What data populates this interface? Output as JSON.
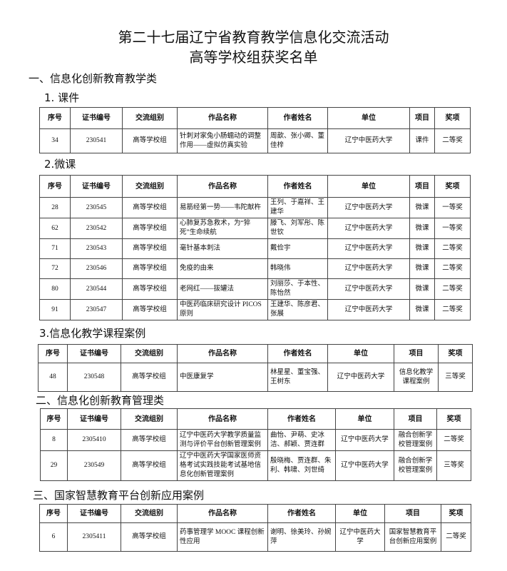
{
  "title": {
    "line1": "第二十七届辽宁省教育教学信息化交流活动",
    "line2": "高等学校组获奖名单"
  },
  "headers": [
    "序号",
    "证书编号",
    "交流组别",
    "作品名称",
    "作者姓名",
    "单位",
    "项目",
    "奖项"
  ],
  "sections": [
    {
      "heading": "一、信息化创新教育教学类",
      "subsections": [
        {
          "heading": "1.   课件",
          "rows": [
            [
              "34",
              "230541",
              "高等学校组",
              "针刺对家兔小肠蠕动的调整作用——虚拟仿真实验",
              "周歆、张小卿、董佳梓",
              "辽宁中医药大学",
              "课件",
              "二等奖"
            ]
          ]
        },
        {
          "heading": "2.微课",
          "rows": [
            [
              "28",
              "230545",
              "高等学校组",
              "易筋经第一势——韦陀献杵",
              "王列、于嘉祥、王建华",
              "辽宁中医药大学",
              "微课",
              "一等奖"
            ],
            [
              "62",
              "230542",
              "高等学校组",
              "心肺复苏急救术，为“猝死”生命续航",
              "滕飞、刘军彤、陈世钦",
              "辽宁中医药大学",
              "微课",
              "一等奖"
            ],
            [
              "71",
              "230543",
              "高等学校组",
              "毫针基本刺法",
              "戴俭宇",
              "辽宁中医药大学",
              "微课",
              "二等奖"
            ],
            [
              "72",
              "230546",
              "高等学校组",
              "免疫的由来",
              "韩晓伟",
              "辽宁中医药大学",
              "微课",
              "二等奖"
            ],
            [
              "80",
              "230544",
              "高等学校组",
              "老网红——拔罐法",
              "刘丽莎、于本性、陈怡然",
              "辽宁中医药大学",
              "微课",
              "二等奖"
            ],
            [
              "91",
              "230547",
              "高等学校组",
              "中医药临床研究设计 PICOS 原则",
              "王建华、陈彦君、张展",
              "辽宁中医药大学",
              "微课",
              "二等奖"
            ]
          ]
        },
        {
          "heading": "3.信息化教学课程案例",
          "rows": [
            [
              "48",
              "230548",
              "高等学校组",
              "中医康复学",
              "林星星、董宝强、王树东",
              "辽宁中医药大学",
              "信息化教学课程案例",
              "三等奖"
            ]
          ]
        }
      ]
    },
    {
      "heading": "二、信息化创新教育管理类",
      "rows": [
        [
          "8",
          "2305410",
          "高等学校组",
          "辽宁中医药大学教学质量监测与评价平台创新管理案例",
          "曲怡、尹萌、史冰洁、郝颖、贾连群",
          "辽宁中医药大学",
          "融合创新学校管理案例",
          "二等奖"
        ],
        [
          "29",
          "230549",
          "高等学校组",
          "辽宁中医药大学国家医师资格考试实践技能考试基地信息化创新管理案例",
          "殷晓梅、贾连群、朱利、韩啸、刘世绮",
          "辽宁中医药大学",
          "融合创新学校管理案例",
          "三等奖"
        ]
      ]
    },
    {
      "heading": "三、国家智慧教育平台创新应用案例",
      "rows": [
        [
          "6",
          "2305411",
          "高等学校组",
          "药事管理学 MOOC 课程创新性应用",
          "谢明、徐美玲、孙婉萍",
          "辽宁中医药大学",
          "国家智慧教育平台创新应用案例",
          "二等奖"
        ]
      ]
    }
  ]
}
